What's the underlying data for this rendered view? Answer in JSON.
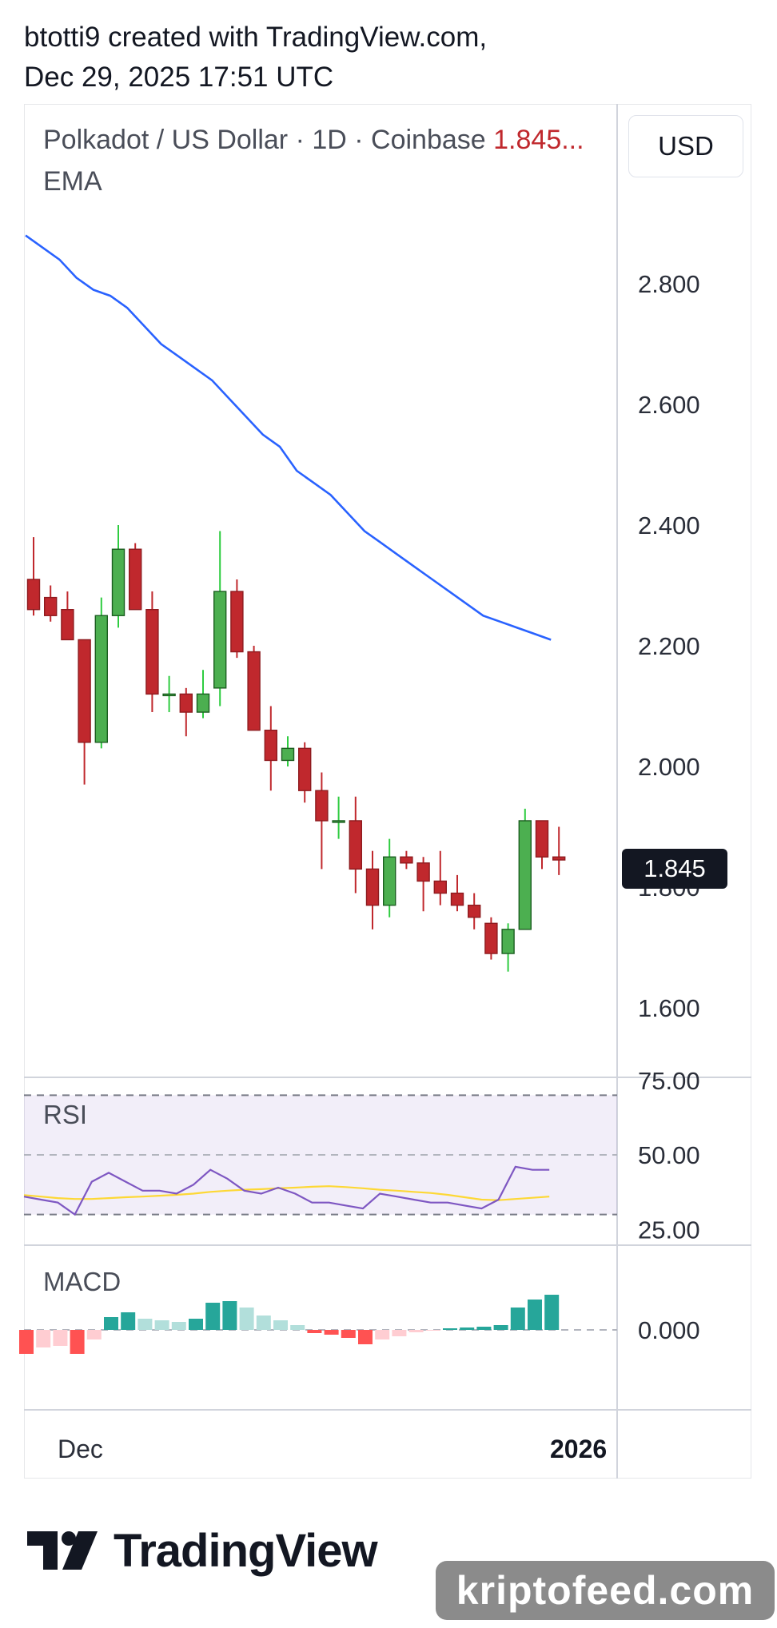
{
  "header": {
    "line1": "btotti9 created with TradingView.com,",
    "line2": "Dec 29, 2025 17:51 UTC"
  },
  "legend": {
    "symbol": "Polkadot / US Dollar · 1D · Coinbase",
    "price": "1.845...",
    "ema_label": "EMA"
  },
  "currency_button": "USD",
  "last_price_tag": "1.845",
  "rsi_label": "RSI",
  "macd_label": "MACD",
  "x_axis": {
    "left": "Dec",
    "right": "2026"
  },
  "brand": "TradingView",
  "watermark": "kriptofeed.com",
  "colors": {
    "up": "#4caf50",
    "down": "#c0282d",
    "ema": "#2962ff",
    "rsi": "#7e57c2",
    "rsi_ma": "#fdd835"
  },
  "chart_data": [
    {
      "type": "candlestick",
      "price_axis": {
        "ticks": [
          "2.800",
          "2.600",
          "2.400",
          "2.200",
          "2.000",
          "1.800",
          "1.600"
        ],
        "range": [
          1.55,
          2.93
        ]
      },
      "candles": [
        {
          "o": 2.31,
          "h": 2.38,
          "l": 2.25,
          "c": 2.26
        },
        {
          "o": 2.28,
          "h": 2.3,
          "l": 2.24,
          "c": 2.25
        },
        {
          "o": 2.26,
          "h": 2.29,
          "l": 2.21,
          "c": 2.21
        },
        {
          "o": 2.21,
          "h": 2.21,
          "l": 1.97,
          "c": 2.04
        },
        {
          "o": 2.04,
          "h": 2.28,
          "l": 2.03,
          "c": 2.25
        },
        {
          "o": 2.25,
          "h": 2.4,
          "l": 2.23,
          "c": 2.36
        },
        {
          "o": 2.36,
          "h": 2.37,
          "l": 2.26,
          "c": 2.26
        },
        {
          "o": 2.26,
          "h": 2.29,
          "l": 2.09,
          "c": 2.12
        },
        {
          "o": 2.12,
          "h": 2.15,
          "l": 2.09,
          "c": 2.12
        },
        {
          "o": 2.12,
          "h": 2.13,
          "l": 2.05,
          "c": 2.09
        },
        {
          "o": 2.09,
          "h": 2.16,
          "l": 2.08,
          "c": 2.12
        },
        {
          "o": 2.13,
          "h": 2.39,
          "l": 2.1,
          "c": 2.29
        },
        {
          "o": 2.29,
          "h": 2.31,
          "l": 2.18,
          "c": 2.19
        },
        {
          "o": 2.19,
          "h": 2.2,
          "l": 2.06,
          "c": 2.06
        },
        {
          "o": 2.06,
          "h": 2.1,
          "l": 1.96,
          "c": 2.01
        },
        {
          "o": 2.01,
          "h": 2.05,
          "l": 2.0,
          "c": 2.03
        },
        {
          "o": 2.03,
          "h": 2.04,
          "l": 1.94,
          "c": 1.96
        },
        {
          "o": 1.96,
          "h": 1.99,
          "l": 1.83,
          "c": 1.91
        },
        {
          "o": 1.91,
          "h": 1.95,
          "l": 1.88,
          "c": 1.91
        },
        {
          "o": 1.91,
          "h": 1.95,
          "l": 1.79,
          "c": 1.83
        },
        {
          "o": 1.83,
          "h": 1.86,
          "l": 1.73,
          "c": 1.77
        },
        {
          "o": 1.77,
          "h": 1.88,
          "l": 1.75,
          "c": 1.85
        },
        {
          "o": 1.85,
          "h": 1.86,
          "l": 1.83,
          "c": 1.84
        },
        {
          "o": 1.84,
          "h": 1.85,
          "l": 1.76,
          "c": 1.81
        },
        {
          "o": 1.81,
          "h": 1.86,
          "l": 1.77,
          "c": 1.79
        },
        {
          "o": 1.79,
          "h": 1.82,
          "l": 1.76,
          "c": 1.77
        },
        {
          "o": 1.77,
          "h": 1.79,
          "l": 1.73,
          "c": 1.75
        },
        {
          "o": 1.74,
          "h": 1.75,
          "l": 1.68,
          "c": 1.69
        },
        {
          "o": 1.69,
          "h": 1.74,
          "l": 1.66,
          "c": 1.73
        },
        {
          "o": 1.73,
          "h": 1.93,
          "l": 1.73,
          "c": 1.91
        },
        {
          "o": 1.91,
          "h": 1.91,
          "l": 1.83,
          "c": 1.85
        },
        {
          "o": 1.85,
          "h": 1.9,
          "l": 1.82,
          "c": 1.845
        }
      ],
      "ema": [
        2.88,
        2.86,
        2.84,
        2.81,
        2.79,
        2.78,
        2.76,
        2.73,
        2.7,
        2.68,
        2.66,
        2.64,
        2.61,
        2.58,
        2.55,
        2.53,
        2.49,
        2.47,
        2.45,
        2.42,
        2.39,
        2.37,
        2.35,
        2.33,
        2.31,
        2.29,
        2.27,
        2.25,
        2.24,
        2.23,
        2.22,
        2.21
      ]
    },
    {
      "type": "line",
      "name": "RSI",
      "y_axis": {
        "ticks": [
          "75.00",
          "50.00",
          "25.00"
        ],
        "range": [
          25,
          75
        ]
      },
      "bands": [
        70,
        50,
        30
      ],
      "rsi": [
        36,
        35,
        34,
        30,
        41,
        44,
        41,
        38,
        38,
        37,
        40,
        45,
        42,
        38,
        37,
        39,
        37,
        34,
        34,
        33,
        32,
        37,
        36,
        35,
        34,
        34,
        33,
        32,
        35,
        46,
        45,
        45
      ],
      "rsi_ma": [
        36.5,
        36,
        35.5,
        35.2,
        35.2,
        35.5,
        35.8,
        36,
        36.3,
        36.6,
        37,
        37.6,
        38,
        38.3,
        38.5,
        38.8,
        39,
        39.3,
        39.5,
        39.2,
        38.8,
        38.3,
        38,
        37.6,
        37.2,
        36.6,
        35.8,
        35,
        34.8,
        35.2,
        35.6,
        36
      ]
    },
    {
      "type": "bar",
      "name": "MACD",
      "y_axis": {
        "ticks": [
          "0.000"
        ]
      },
      "histogram": [
        -0.03,
        -0.022,
        -0.02,
        -0.03,
        -0.012,
        0.016,
        0.022,
        0.014,
        0.012,
        0.01,
        0.014,
        0.034,
        0.036,
        0.028,
        0.018,
        0.012,
        0.006,
        -0.004,
        -0.006,
        -0.01,
        -0.018,
        -0.012,
        -0.008,
        -0.003,
        -0.001,
        0.002,
        0.003,
        0.004,
        0.006,
        0.028,
        0.038,
        0.044
      ]
    }
  ]
}
